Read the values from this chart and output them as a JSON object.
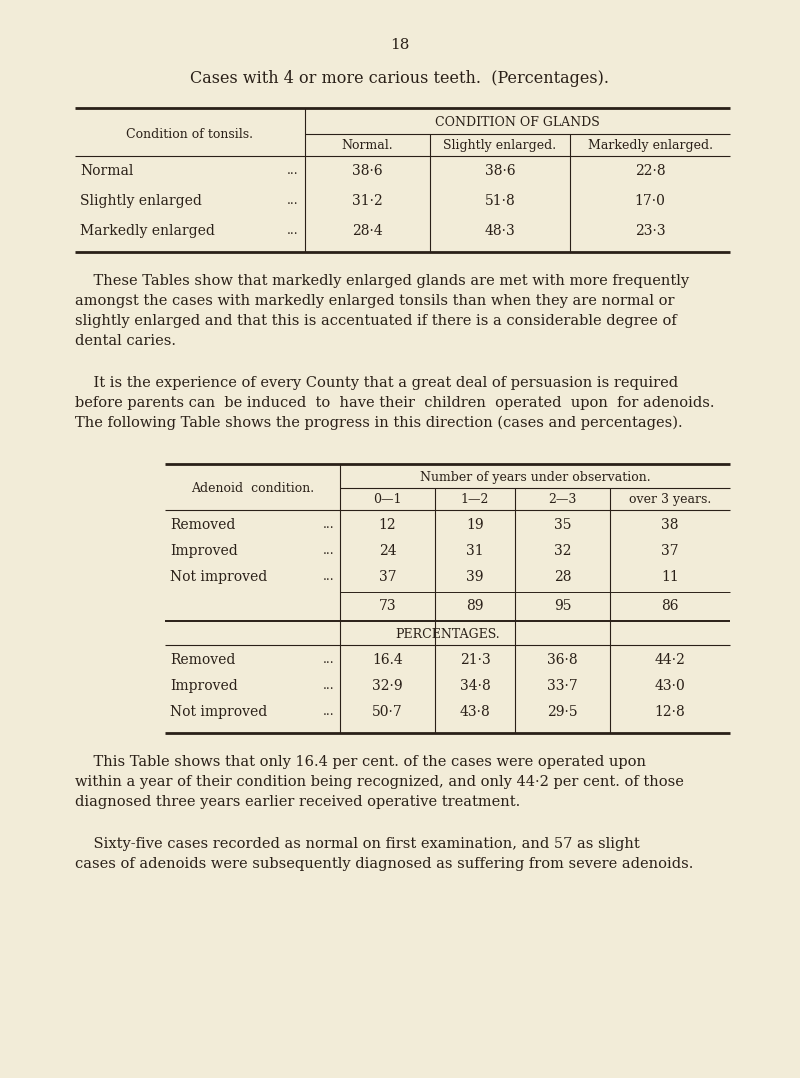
{
  "bg_color": "#f2ecd8",
  "text_color": "#2a2018",
  "page_number": "18",
  "title_line1": "Cases with 4 or more carious teeth.",
  "title_line2": "(Percentages).",
  "table1": {
    "col_header_main": "CONDITION OF GLANDS",
    "col_header_sub": [
      "Normal.",
      "Slightly enlarged.",
      "Markedly enlarged."
    ],
    "row_header_label": "Condition of tonsils.",
    "rows": [
      {
        "label": "Normal",
        "dots": "...",
        "values": [
          "38·6",
          "38·6",
          "22·8"
        ]
      },
      {
        "label": "Slightly enlarged",
        "dots": "...",
        "values": [
          "31·2",
          "51·8",
          "17·0"
        ]
      },
      {
        "label": "Markedly enlarged",
        "dots": "...",
        "values": [
          "28·4",
          "48·3",
          "23·3"
        ]
      }
    ]
  },
  "paragraph1_indent": "    These Tables show that markedly enlarged glands are met with more frequently",
  "paragraph1_rest": [
    "amongst the cases with markedly enlarged tonsils than when they are normal or",
    "slightly enlarged and that this is accentuated if there is a considerable degree of",
    "dental caries."
  ],
  "paragraph2_indent": "    It is the experience of every County that a great deal of persuasion is required",
  "paragraph2_rest": [
    "before parents can  be induced  to  have their  children  operated  upon  for adenoids.",
    "The following Table shows the progress in this direction (cases and percentages)."
  ],
  "table2": {
    "col_header_main": "Number of years under observation.",
    "col_header_sub": [
      "0—1",
      "1—2",
      "2—3",
      "over 3 years."
    ],
    "row_header_label": "Adenoid  condition.",
    "rows_counts": [
      {
        "label": "Removed",
        "dots": "...",
        "values": [
          "12",
          "19",
          "35",
          "38"
        ]
      },
      {
        "label": "Improved",
        "dots": "...",
        "values": [
          "24",
          "31",
          "32",
          "37"
        ]
      },
      {
        "label": "Not improved",
        "dots": "...",
        "values": [
          "37",
          "39",
          "28",
          "11"
        ]
      }
    ],
    "totals": [
      "73",
      "89",
      "95",
      "86"
    ],
    "percentages_header": "PERCENTAGES.",
    "rows_pct": [
      {
        "label": "Removed",
        "dots": "...",
        "values": [
          "16.4",
          "21·3",
          "36·8",
          "44·2"
        ]
      },
      {
        "label": "Improved",
        "dots": "...",
        "values": [
          "32·9",
          "34·8",
          "33·7",
          "43·0"
        ]
      },
      {
        "label": "Not improved",
        "dots": "...",
        "values": [
          "50·7",
          "43·8",
          "29·5",
          "12·8"
        ]
      }
    ]
  },
  "paragraph3_indent": "    This Table shows that only 16.4 per cent. of the cases were operated upon",
  "paragraph3_rest": [
    "within a year of their condition being recognized, and only 44·2 per cent. of those",
    "diagnosed three years earlier received operative treatment."
  ],
  "paragraph4_indent": "    Sixty-five cases recorded as normal on first examination, and 57 as slight",
  "paragraph4_rest": [
    "cases of adenoids were subsequently diagnosed as suffering from severe adenoids."
  ]
}
